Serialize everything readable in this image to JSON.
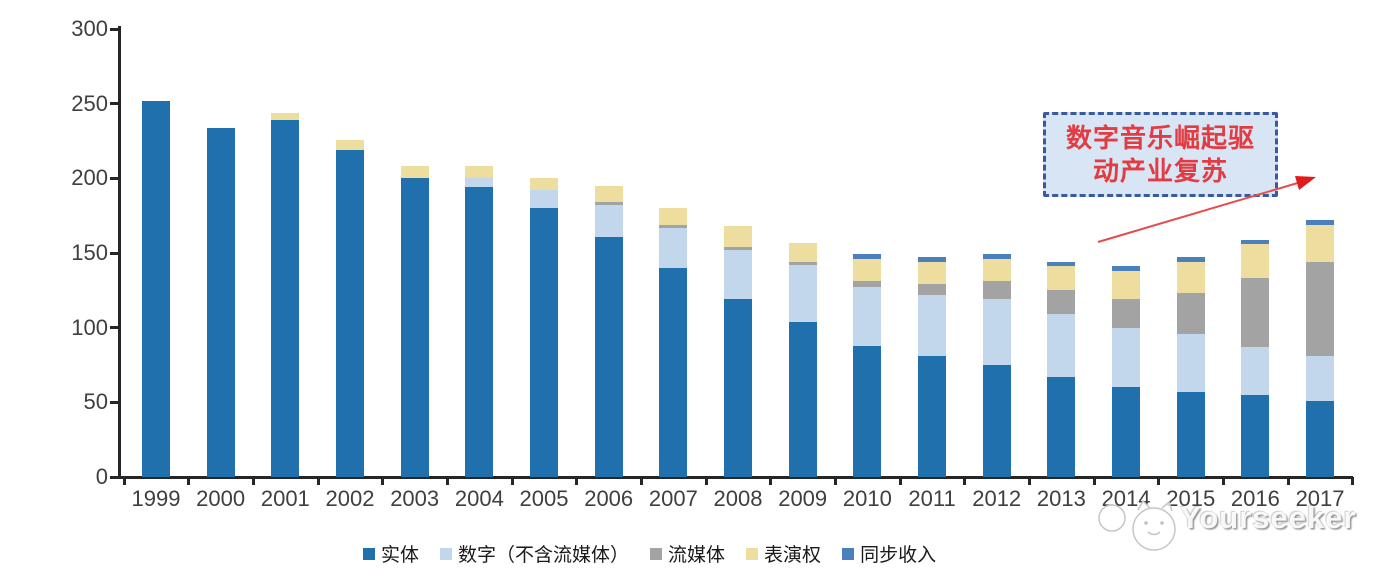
{
  "chart_data": {
    "type": "bar",
    "stacked": true,
    "categories": [
      "1999",
      "2000",
      "2001",
      "2002",
      "2003",
      "2004",
      "2005",
      "2006",
      "2007",
      "2008",
      "2009",
      "2010",
      "2011",
      "2012",
      "2013",
      "2014",
      "2015",
      "2016",
      "2017"
    ],
    "series": [
      {
        "name": "实体",
        "color": "#2070ae",
        "values": [
          252,
          234,
          239,
          219,
          200,
          194,
          180,
          161,
          140,
          119,
          104,
          88,
          81,
          75,
          67,
          60,
          57,
          55,
          51
        ]
      },
      {
        "name": "数字（不含流媒体）",
        "color": "#c3d7ec",
        "values": [
          0,
          0,
          0,
          0,
          0,
          6,
          12,
          21,
          27,
          33,
          38,
          39,
          41,
          44,
          42,
          40,
          39,
          32,
          30
        ]
      },
      {
        "name": "流媒体",
        "color": "#a3a3a3",
        "values": [
          0,
          0,
          0,
          0,
          0,
          0,
          0,
          2,
          2,
          2,
          2,
          4,
          7,
          12,
          16,
          19,
          27,
          46,
          63
        ]
      },
      {
        "name": "表演权",
        "color": "#eddd9f",
        "values": [
          0,
          0,
          5,
          7,
          8,
          8,
          8,
          11,
          11,
          14,
          13,
          15,
          15,
          15,
          16,
          19,
          21,
          23,
          25
        ]
      },
      {
        "name": "同步收入",
        "color": "#4a80be",
        "values": [
          0,
          0,
          0,
          0,
          0,
          0,
          0,
          0,
          0,
          0,
          0,
          3,
          3,
          3,
          3,
          3,
          3,
          3,
          3
        ]
      }
    ],
    "ylim": [
      0,
      300
    ],
    "yticks": [
      0,
      50,
      100,
      150,
      200,
      250,
      300
    ],
    "grid": false,
    "legend_position": "bottom"
  },
  "annotation": {
    "line1": "数字音乐崛起驱",
    "line2": "动产业复苏"
  },
  "watermark": {
    "text": "Yourseeker"
  }
}
